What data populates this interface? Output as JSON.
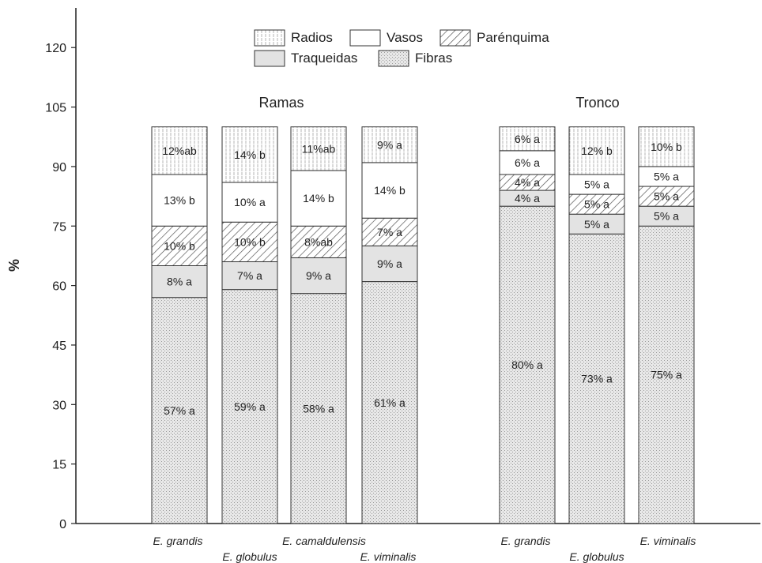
{
  "chart_data": {
    "type": "bar",
    "stacked": true,
    "title": "",
    "xlabel": "",
    "ylabel": "%",
    "ylim": [
      0,
      130
    ],
    "yticks": [
      0,
      15,
      30,
      45,
      60,
      75,
      90,
      105,
      120
    ],
    "grid": false,
    "legend_position": "top-center",
    "groups": [
      {
        "name": "Ramas",
        "categories": [
          "E. grandis",
          "E. globulus",
          "E. camaldulensis",
          "E. viminalis"
        ]
      },
      {
        "name": "Tronco",
        "categories": [
          "E. grandis",
          "E. globulus",
          "E. viminalis"
        ]
      }
    ],
    "series": [
      {
        "name": "Fibras",
        "pattern": "dots",
        "values": [
          57,
          59,
          58,
          61,
          80,
          73,
          75
        ],
        "labels": [
          "57% a",
          "59% a",
          "58% a",
          "61% a",
          "80% a",
          "73% a",
          "75% a"
        ]
      },
      {
        "name": "Traqueidas",
        "pattern": "gray",
        "values": [
          8,
          7,
          9,
          9,
          4,
          5,
          5
        ],
        "labels": [
          "8% a",
          "7% a",
          "9% a",
          "9% a",
          "4% a",
          "5% a",
          "5% a"
        ]
      },
      {
        "name": "Parénquima",
        "pattern": "diagonal",
        "values": [
          10,
          10,
          8,
          7,
          4,
          5,
          5
        ],
        "labels": [
          "10% b",
          "10% b",
          "8%ab",
          "7% a",
          "4% a",
          "5% a",
          "5% a"
        ]
      },
      {
        "name": "Vasos",
        "pattern": "white",
        "values": [
          13,
          10,
          14,
          14,
          6,
          5,
          5
        ],
        "labels": [
          "13% b",
          "10% a",
          "14% b",
          "14% b",
          "6% a",
          "5% a",
          "5% a"
        ]
      },
      {
        "name": "Radios",
        "pattern": "vertical",
        "values": [
          12,
          14,
          11,
          9,
          6,
          12,
          10
        ],
        "labels": [
          "12%ab",
          "14% b",
          "11%ab",
          "9% a",
          "6% a",
          "12% b",
          "10% b"
        ]
      }
    ],
    "legend_order": [
      [
        "Radios",
        "Vasos",
        "Parénquima"
      ],
      [
        "Traqueidas",
        "Fibras"
      ]
    ]
  },
  "colors": {
    "axis": "#222222",
    "border": "#333333",
    "gray_fill": "#e3e3e3",
    "dots_fill": "#e8e8e8",
    "dot": "#9a9a9a",
    "hatch": "#555555",
    "vertical": "#b5b5b5"
  }
}
